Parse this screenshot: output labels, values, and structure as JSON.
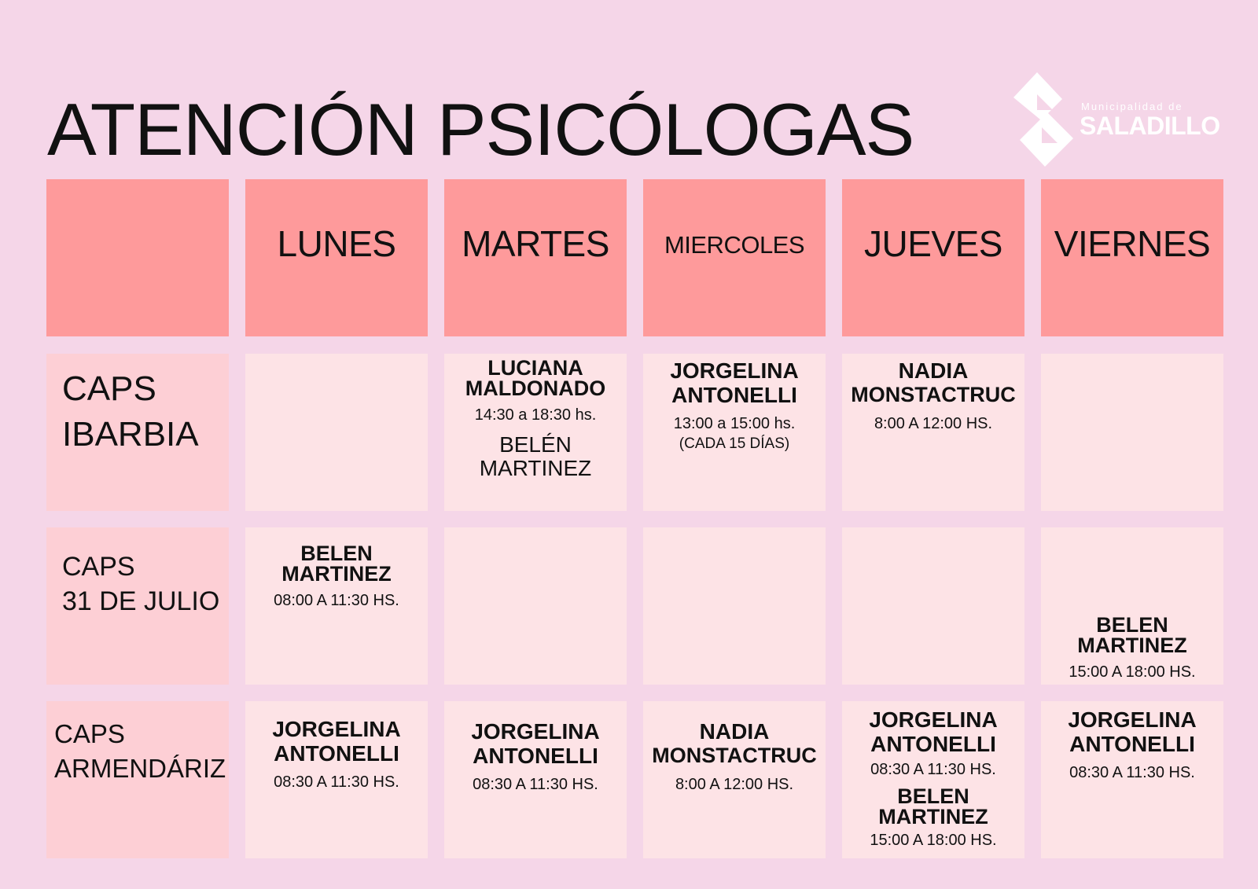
{
  "title": "ATENCIÓN PSICÓLOGAS",
  "logo": {
    "small": "Municipalidad de",
    "big": "SALADILLO"
  },
  "headers": {
    "lunes": "LUNES",
    "martes": "MARTES",
    "miercoles": "MIERCOLES",
    "jueves": "JUEVES",
    "viernes": "VIERNES"
  },
  "rows": {
    "ibarbia": {
      "label_1": "CAPS",
      "label_2": "IBARBIA",
      "martes": {
        "name_1": "LUCIANA",
        "name_2": "MALDONADO",
        "hours": "14:30 a 18:30 hs.",
        "extra_1": "BELÉN",
        "extra_2": "MARTINEZ"
      },
      "miercoles": {
        "name_1": "JORGELINA",
        "name_2": "ANTONELLI",
        "hours": "13:00 a 15:00 hs.",
        "note": "(CADA 15 DÍAS)"
      },
      "jueves": {
        "name_1": "NADIA",
        "name_2": "MONSTACTRUC",
        "hours": "8:00 A 12:00 HS."
      }
    },
    "julio": {
      "label_1": "CAPS",
      "label_2": "31 DE JULIO",
      "lunes": {
        "name_1": "BELEN",
        "name_2": "MARTINEZ",
        "hours": "08:00 A 11:30 HS."
      },
      "viernes": {
        "name_1": "BELEN",
        "name_2": "MARTINEZ",
        "hours": "15:00 A 18:00 HS."
      }
    },
    "armendariz": {
      "label_1": "CAPS",
      "label_2": "ARMENDÁRIZ",
      "lunes": {
        "name_1": "JORGELINA",
        "name_2": "ANTONELLI",
        "hours": "08:30 A 11:30 HS."
      },
      "martes": {
        "name_1": "JORGELINA",
        "name_2": "ANTONELLI",
        "hours": "08:30 A 11:30 HS."
      },
      "miercoles": {
        "name_1": "NADIA",
        "name_2": "MONSTACTRUC",
        "hours": "8:00 A 12:00 HS."
      },
      "jueves": {
        "name_1": "JORGELINA",
        "name_2": "ANTONELLI",
        "hours": "08:30 A 11:30 HS.",
        "name2_1": "BELEN",
        "name2_2": "MARTINEZ",
        "hours2": "15:00 A 18:00 HS."
      },
      "viernes": {
        "name_1": "JORGELINA",
        "name_2": "ANTONELLI",
        "hours": "08:30 A 11:30 HS."
      }
    }
  },
  "colors": {
    "background": "#f5d6e8",
    "header": "#fe9a9b",
    "row_label": "#fdcfd5",
    "cell": "#fde3e6",
    "logo": "#ffffff"
  }
}
